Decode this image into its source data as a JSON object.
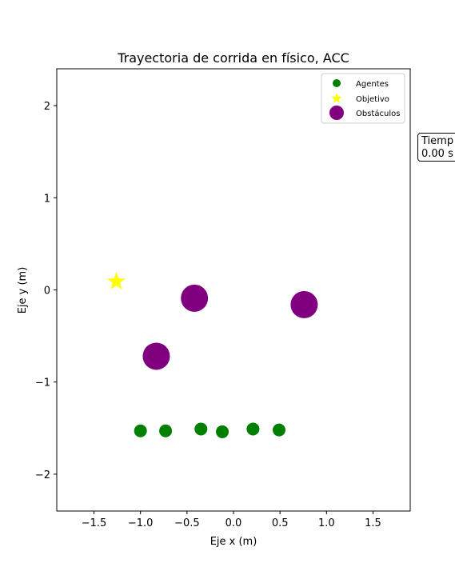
{
  "chart_data": {
    "type": "scatter",
    "title": "Trayectoria de corrida en físico, ACC",
    "xlabel": "Eje x (m)",
    "ylabel": "Eje y (m)",
    "xlim": [
      -1.9,
      1.9
    ],
    "ylim": [
      -2.4,
      2.4
    ],
    "xticks": [
      -1.5,
      -1.0,
      -0.5,
      0.0,
      0.5,
      1.0,
      1.5
    ],
    "xtick_labels": [
      "−1.5",
      "−1.0",
      "−0.5",
      "0.0",
      "0.5",
      "1.0",
      "1.5"
    ],
    "yticks": [
      -2,
      -1,
      0,
      1,
      2
    ],
    "ytick_labels": [
      "−2",
      "−1",
      "0",
      "1",
      "2"
    ],
    "legend_position": "top-right",
    "series": [
      {
        "name": "Agentes",
        "marker": "circle",
        "color": "#008000",
        "x": [
          -1.0,
          -0.73,
          -0.35,
          -0.12,
          0.21,
          0.49
        ],
        "y": [
          -1.53,
          -1.53,
          -1.51,
          -1.54,
          -1.51,
          -1.52
        ]
      },
      {
        "name": "Objetivo",
        "marker": "star",
        "color": "#ffff00",
        "x": [
          -1.26
        ],
        "y": [
          0.09
        ]
      },
      {
        "name": "Obstáculos",
        "marker": "circle-large",
        "color": "#800080",
        "x": [
          -0.42,
          0.76,
          -0.83
        ],
        "y": [
          -0.09,
          -0.16,
          -0.72
        ]
      }
    ],
    "annotation": {
      "line1": "Tiemp",
      "line2": "0.00 s"
    }
  }
}
